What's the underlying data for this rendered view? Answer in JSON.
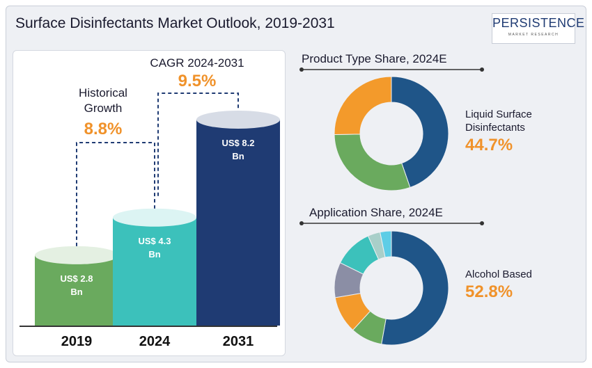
{
  "title": "Surface Disinfectants Market Outlook, 2019-2031",
  "logo": {
    "main": "PERSISTENCE",
    "sub": "MARKET RESEARCH"
  },
  "colors": {
    "accent": "#f0922a",
    "bar2019": "#6aaa5e",
    "bar2024": "#3cc1bb",
    "bar2031": "#1f3b73"
  },
  "chart_data": [
    {
      "type": "bar",
      "categories": [
        "2019",
        "2024",
        "2031"
      ],
      "values": [
        2.8,
        4.3,
        8.2
      ],
      "value_labels": [
        [
          "US$ 2.8",
          "Bn"
        ],
        [
          "US$ 4.3",
          "Bn"
        ],
        [
          "US$ 8.2",
          "Bn"
        ]
      ],
      "annotations": [
        {
          "label": [
            "Historical",
            "Growth"
          ],
          "value": "8.8%"
        },
        {
          "label": [
            "CAGR 2024-2031"
          ],
          "value": "9.5%"
        }
      ]
    },
    {
      "type": "pie",
      "title": "Product Type Share, 2024E",
      "values": [
        44.7,
        30.0,
        25.3
      ],
      "colors": [
        "#1f5588",
        "#6aaa5e",
        "#f39a2b"
      ],
      "highlight": {
        "label": [
          "Liquid Surface",
          "Disinfectants"
        ],
        "value": "44.7%"
      }
    },
    {
      "type": "pie",
      "title": "Application Share, 2024E",
      "values": [
        52.8,
        9.0,
        10.5,
        10.0,
        11.0,
        3.5,
        3.2
      ],
      "colors": [
        "#1f5588",
        "#6aaa5e",
        "#f39a2b",
        "#8b8ea5",
        "#3cc1bb",
        "#a9cfc9",
        "#5ecde6"
      ],
      "highlight": {
        "label": [
          "Alcohol Based"
        ],
        "value": "52.8%"
      }
    }
  ]
}
